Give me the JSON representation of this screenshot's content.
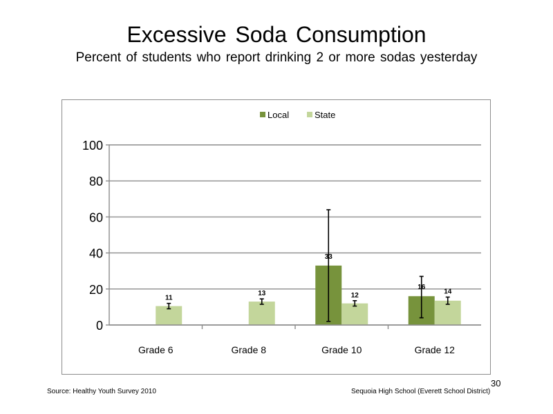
{
  "slide": {
    "title": "Excessive  Soda  Consumption",
    "subtitle": "Percent  of students  who  report drinking  2  or more sodas  yesterday",
    "source": "Source: Healthy  Youth Survey 2010",
    "school": "Sequoia  High  School  (Everett School District)",
    "page_number": "30"
  },
  "chart_data": {
    "type": "bar",
    "categories": [
      "Grade 6",
      "Grade 8",
      "Grade 10",
      "Grade 12"
    ],
    "series": [
      {
        "name": "Local",
        "color": "#77933c",
        "values": [
          null,
          null,
          33,
          16
        ],
        "labels": [
          "",
          "",
          "33",
          "16"
        ],
        "error_low": [
          null,
          null,
          2,
          4
        ],
        "error_high": [
          null,
          null,
          64,
          27
        ]
      },
      {
        "name": "State",
        "color": "#c3d69b",
        "values": [
          10.5,
          13,
          12,
          13.5
        ],
        "labels": [
          "11",
          "13",
          "12",
          "14"
        ],
        "error_low": [
          9,
          11.5,
          10.5,
          11.5
        ],
        "error_high": [
          12,
          14.5,
          13.5,
          15.5
        ]
      }
    ],
    "yticks": [
      "0",
      "20",
      "40",
      "60",
      "80",
      "100"
    ],
    "ylim": [
      0,
      100
    ],
    "grid": true,
    "legend": "top-center"
  }
}
